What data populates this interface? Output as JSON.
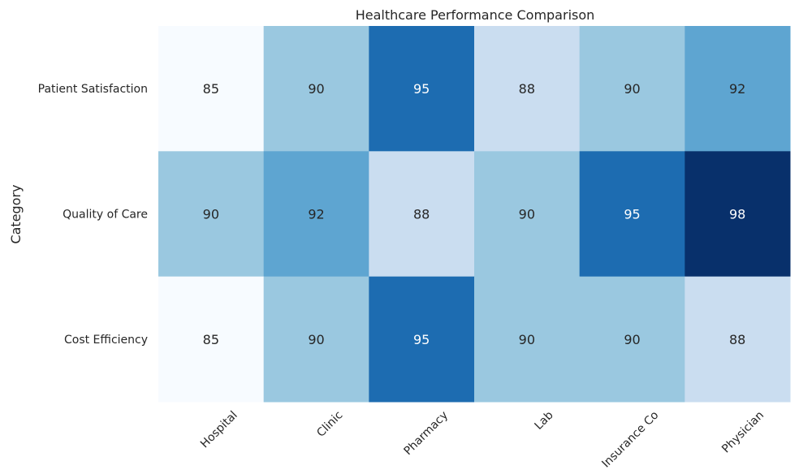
{
  "chart_data": {
    "type": "heatmap",
    "title": "Healthcare Performance Comparison",
    "xlabel": "",
    "ylabel": "Category",
    "x_tick_labels": [
      "Hospital",
      "Clinic",
      "Pharmacy",
      "Lab",
      "Insurance Co",
      "Physician"
    ],
    "y_tick_labels": [
      "Patient Satisfaction",
      "Quality of Care",
      "Cost Efficiency"
    ],
    "values": [
      [
        85,
        90,
        95,
        88,
        90,
        92
      ],
      [
        90,
        92,
        88,
        90,
        95,
        98
      ],
      [
        85,
        90,
        95,
        90,
        90,
        88
      ]
    ],
    "value_range": [
      85,
      98
    ],
    "colormap": "Blues",
    "annotations": true,
    "colorbar": false
  }
}
